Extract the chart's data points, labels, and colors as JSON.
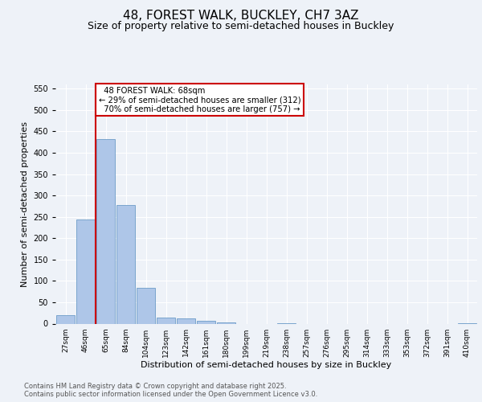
{
  "title_line1": "48, FOREST WALK, BUCKLEY, CH7 3AZ",
  "title_line2": "Size of property relative to semi-detached houses in Buckley",
  "xlabel": "Distribution of semi-detached houses by size in Buckley",
  "ylabel": "Number of semi-detached properties",
  "footnote": "Contains HM Land Registry data © Crown copyright and database right 2025.\nContains public sector information licensed under the Open Government Licence v3.0.",
  "bin_labels": [
    "27sqm",
    "46sqm",
    "65sqm",
    "84sqm",
    "104sqm",
    "123sqm",
    "142sqm",
    "161sqm",
    "180sqm",
    "199sqm",
    "219sqm",
    "238sqm",
    "257sqm",
    "276sqm",
    "295sqm",
    "314sqm",
    "333sqm",
    "353sqm",
    "372sqm",
    "391sqm",
    "410sqm"
  ],
  "bar_values": [
    20,
    243,
    432,
    278,
    83,
    14,
    13,
    7,
    2,
    0,
    0,
    1,
    0,
    0,
    0,
    0,
    0,
    0,
    0,
    0,
    1
  ],
  "bar_color": "#aec6e8",
  "bar_edge_color": "#5a8fc0",
  "property_line_label": "48 FOREST WALK: 68sqm",
  "pct_smaller": 29,
  "count_smaller": 312,
  "pct_larger": 70,
  "count_larger": 757,
  "annotation_box_color": "#ffffff",
  "annotation_box_edge_color": "#cc0000",
  "vline_color": "#cc0000",
  "vline_bin_index": 2,
  "ylim": [
    0,
    560
  ],
  "yticks": [
    0,
    50,
    100,
    150,
    200,
    250,
    300,
    350,
    400,
    450,
    500,
    550
  ],
  "background_color": "#eef2f8",
  "plot_bg_color": "#eef2f8",
  "grid_color": "#ffffff",
  "title_fontsize": 11,
  "subtitle_fontsize": 9,
  "ylabel_fontsize": 8,
  "xlabel_fontsize": 8,
  "tick_fontsize": 7,
  "footnote_fontsize": 6
}
